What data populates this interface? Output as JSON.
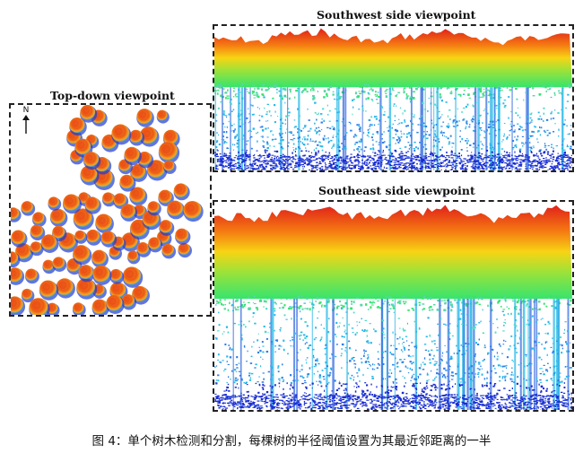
{
  "panels": {
    "topdown_title": "Top-down viewpoint",
    "southwest_title": "Southwest side viewpoint",
    "southeast_title": "Southeast side viewpoint",
    "north_label": "N"
  },
  "caption": "图 4：单个树木检测和分割，每棵树的半径阈值设置为其最近邻距离的一半",
  "colors": {
    "frame": "#222222",
    "canopy_top": "#e0201a",
    "canopy_mid": "#f7d414",
    "mid": "#36e46e",
    "lower": "#28b8e8",
    "ground": "#1a2bd0"
  }
}
